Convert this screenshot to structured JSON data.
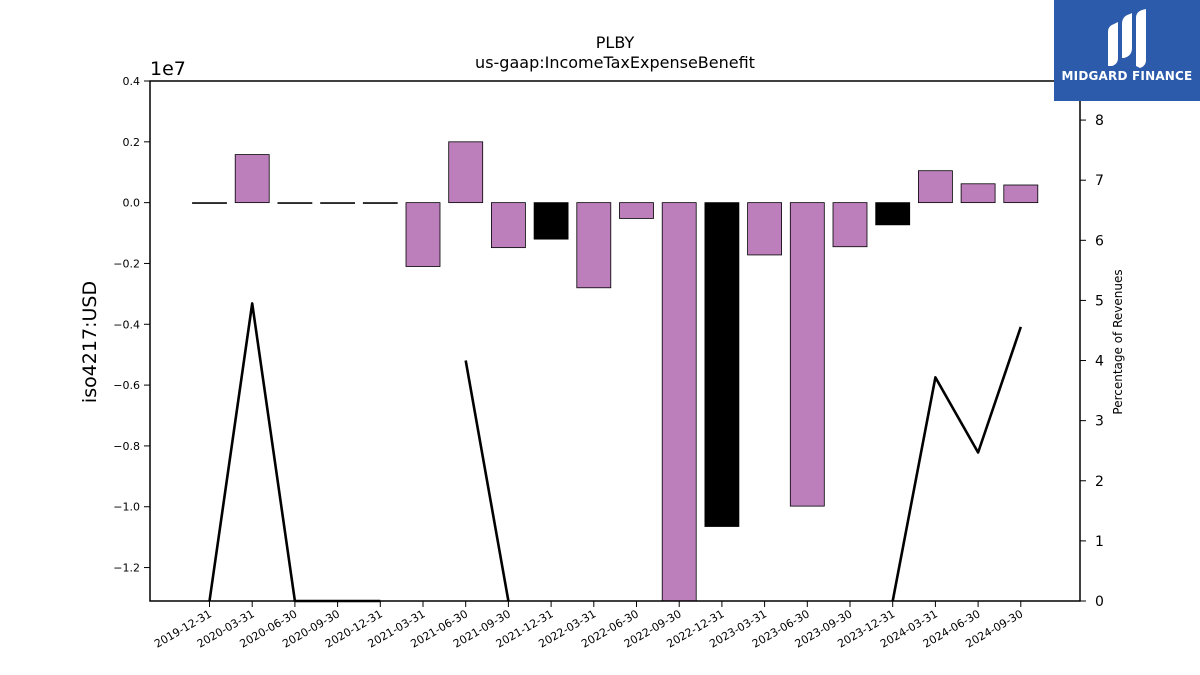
{
  "chart_data": {
    "type": "bar",
    "title": "PLBY",
    "subtitle": "us-gaap:IncomeTaxExpenseBenefit",
    "ylabel": "iso4217:USD",
    "y_offset_label": "1e7",
    "y2label": "Percentage of Revenues",
    "ylim": [
      -1.31,
      0.4
    ],
    "y2lim": [
      0,
      8.65
    ],
    "yticks": [
      "0.4",
      "0.2",
      "0.0",
      "−0.2",
      "−0.4",
      "−0.6",
      "−0.8",
      "−1.0",
      "−1.2"
    ],
    "y2ticks": [
      "0",
      "1",
      "2",
      "3",
      "4",
      "5",
      "6",
      "7",
      "8"
    ],
    "categories": [
      "2019-12-31",
      "2020-03-31",
      "2020-06-30",
      "2020-09-30",
      "2020-12-31",
      "2021-03-31",
      "2021-06-30",
      "2021-09-30",
      "2021-12-31",
      "2022-03-31",
      "2022-06-30",
      "2022-09-30",
      "2022-12-31",
      "2023-03-31",
      "2023-06-30",
      "2023-09-30",
      "2023-12-31",
      "2024-03-31",
      "2024-06-30",
      "2024-09-30"
    ],
    "series": [
      {
        "type": "bar",
        "values": [
          0,
          0.158,
          0,
          0,
          0,
          -0.21,
          0.2,
          -0.148,
          -0.12,
          -0.28,
          -0.052,
          -1.32,
          -1.065,
          -0.172,
          -0.998,
          -0.145,
          -0.073,
          0.105,
          0.062,
          0.058
        ],
        "colors": [
          "#bc7fbc",
          "#bc7fbc",
          "#bc7fbc",
          "#bc7fbc",
          "#bc7fbc",
          "#bc7fbc",
          "#bc7fbc",
          "#bc7fbc",
          "#000000",
          "#bc7fbc",
          "#bc7fbc",
          "#bc7fbc",
          "#000000",
          "#bc7fbc",
          "#bc7fbc",
          "#bc7fbc",
          "#000000",
          "#bc7fbc",
          "#bc7fbc",
          "#bc7fbc"
        ]
      },
      {
        "type": "line",
        "axis": "y2",
        "values": [
          0,
          4.95,
          0,
          0,
          0,
          null,
          4.0,
          0,
          null,
          null,
          null,
          null,
          null,
          null,
          null,
          null,
          0,
          3.72,
          2.47,
          4.56
        ]
      }
    ],
    "grid": false,
    "legend": "none"
  },
  "branding": {
    "name": "MIDGARD FINANCE",
    "bg_color": "#2c5bab"
  }
}
